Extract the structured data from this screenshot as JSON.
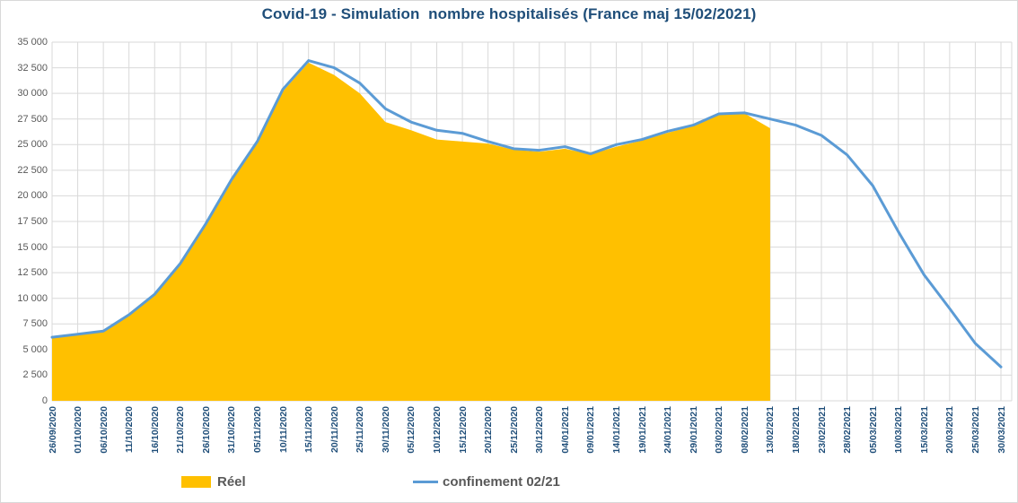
{
  "chart_data": {
    "type": "area",
    "title": "Covid-19 - Simulation  nombre hospitalisés (France maj 15/02/2021)",
    "xlabel": "",
    "ylabel": "",
    "ylim": [
      0,
      35000
    ],
    "grid": true,
    "legend_position": "bottom",
    "y_ticks": [
      {
        "v": 0,
        "label": "0"
      },
      {
        "v": 2500,
        "label": "2 500"
      },
      {
        "v": 5000,
        "label": "5 000"
      },
      {
        "v": 7500,
        "label": "7 500"
      },
      {
        "v": 10000,
        "label": "10 000"
      },
      {
        "v": 12500,
        "label": "12 500"
      },
      {
        "v": 15000,
        "label": "15 000"
      },
      {
        "v": 17500,
        "label": "17 500"
      },
      {
        "v": 20000,
        "label": "20 000"
      },
      {
        "v": 22500,
        "label": "22 500"
      },
      {
        "v": 25000,
        "label": "25 000"
      },
      {
        "v": 27500,
        "label": "27 500"
      },
      {
        "v": 30000,
        "label": "30 000"
      },
      {
        "v": 32500,
        "label": "32 500"
      },
      {
        "v": 35000,
        "label": "35 000"
      }
    ],
    "categories": [
      "26/09/2020",
      "01/10/2020",
      "06/10/2020",
      "11/10/2020",
      "16/10/2020",
      "21/10/2020",
      "26/10/2020",
      "31/10/2020",
      "05/11/2020",
      "10/11/2020",
      "15/11/2020",
      "20/11/2020",
      "25/11/2020",
      "30/11/2020",
      "05/12/2020",
      "10/12/2020",
      "15/12/2020",
      "20/12/2020",
      "25/12/2020",
      "30/12/2020",
      "04/01/2021",
      "09/01/2021",
      "14/01/2021",
      "19/01/2021",
      "24/01/2021",
      "29/01/2021",
      "03/02/2021",
      "08/02/2021",
      "13/02/2021",
      "18/02/2021",
      "23/02/2021",
      "28/02/2021",
      "05/03/2021",
      "10/03/2021",
      "15/03/2021",
      "20/03/2021",
      "25/03/2021",
      "30/03/2021"
    ],
    "series": [
      {
        "name": "Réel",
        "type": "area",
        "color": "#FFC000",
        "values": [
          6100,
          6400,
          6700,
          8300,
          10300,
          13300,
          17200,
          21500,
          25200,
          30200,
          33000,
          31800,
          30000,
          27200,
          26400,
          25500,
          25300,
          25100,
          24500,
          24300,
          24600,
          24050,
          24800,
          25400,
          26150,
          26800,
          27900,
          28050,
          26600
        ]
      },
      {
        "name": "confinement 02/21",
        "type": "line",
        "color": "#5B9BD5",
        "values": [
          6200,
          6500,
          6800,
          8400,
          10400,
          13400,
          17300,
          21600,
          25300,
          30400,
          33200,
          32500,
          31000,
          28500,
          27200,
          26400,
          26100,
          25300,
          24600,
          24450,
          24800,
          24100,
          25000,
          25500,
          26300,
          26900,
          28000,
          28100,
          27500,
          26900,
          25900,
          24000,
          21000,
          16500,
          12300,
          9000,
          5600,
          3300
        ]
      }
    ],
    "colors": {
      "title": "#1F4E79",
      "x_labels": "#1F4E79",
      "y_labels": "#595959",
      "legend_text": "#595959",
      "gridline": "#D9D9D9",
      "background": "#FFFFFF"
    }
  }
}
